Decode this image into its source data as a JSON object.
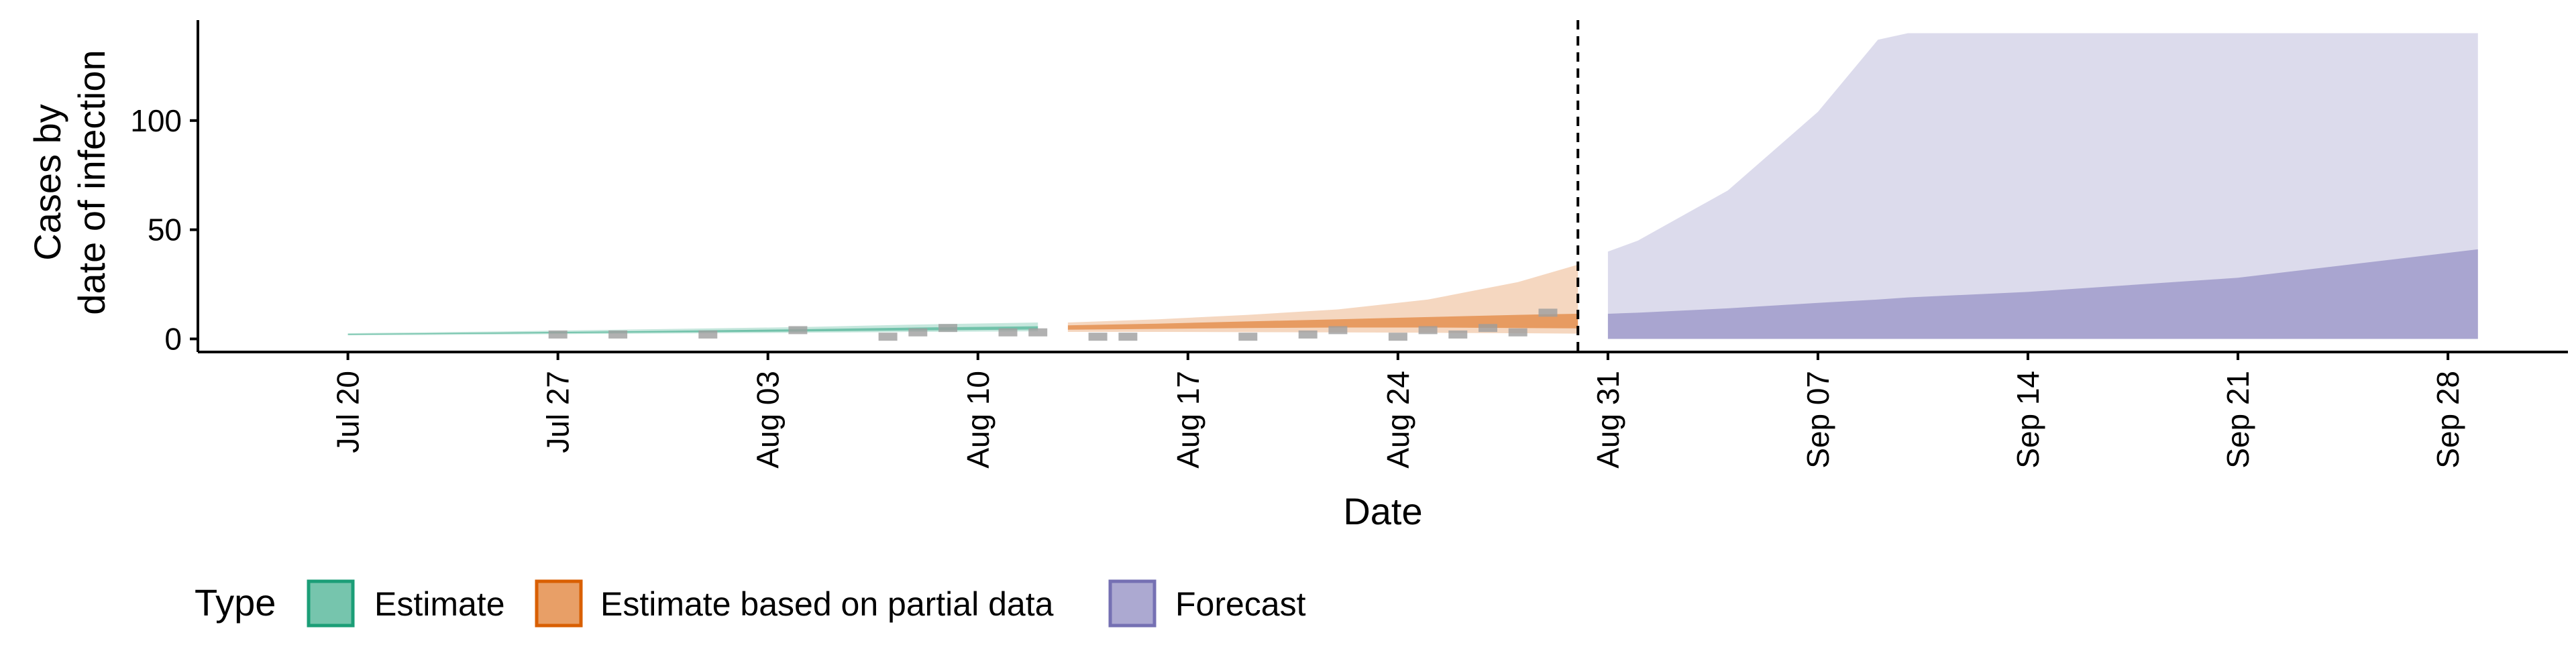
{
  "chart_data": {
    "type": "area",
    "title": "",
    "xlabel": "Date",
    "ylabel_lines": [
      "Cases by",
      "date of infection"
    ],
    "x_range": [
      "2020-07-15",
      "2020-10-02"
    ],
    "ylim": [
      -6,
      146
    ],
    "y_ticks": [
      0,
      50,
      100
    ],
    "y_tick_labels": [
      "0",
      "50",
      "100"
    ],
    "x_ticks": [
      "2020-07-20",
      "2020-07-27",
      "2020-08-03",
      "2020-08-10",
      "2020-08-17",
      "2020-08-24",
      "2020-08-31",
      "2020-09-07",
      "2020-09-14",
      "2020-09-21",
      "2020-09-28"
    ],
    "x_tick_labels": [
      "Jul 20",
      "Jul 27",
      "Aug 03",
      "Aug 10",
      "Aug 17",
      "Aug 24",
      "Aug 31",
      "Sep 07",
      "Sep 14",
      "Sep 21",
      "Sep 28"
    ],
    "vline_date": "2020-08-30",
    "grid": false,
    "legend_placement": "bottom",
    "legend": {
      "title": "Type",
      "items": [
        {
          "label": "Estimate",
          "fill": "#1b9e77",
          "stroke": "#1b9e77"
        },
        {
          "label": "Estimate based on partial data",
          "fill": "#d95f02",
          "stroke": "#d95f02"
        },
        {
          "label": "Forecast",
          "fill": "#7570b3",
          "stroke": "#7570b3"
        }
      ]
    },
    "series": [
      {
        "name": "Estimate",
        "color": "#1b9e77",
        "x": [
          "2020-07-20",
          "2020-07-25",
          "2020-07-30",
          "2020-08-04",
          "2020-08-08",
          "2020-08-12"
        ],
        "outer_low": [
          1.6,
          2.0,
          2.4,
          2.8,
          3.2,
          3.5
        ],
        "outer_high": [
          2.6,
          3.4,
          4.4,
          5.4,
          6.6,
          7.5
        ],
        "inner_low": [
          1.9,
          2.4,
          2.9,
          3.4,
          3.9,
          4.3
        ],
        "inner_high": [
          2.3,
          2.9,
          3.6,
          4.4,
          5.2,
          5.8
        ]
      },
      {
        "name": "Estimate based on partial data",
        "color": "#d95f02",
        "x": [
          "2020-08-13",
          "2020-08-16",
          "2020-08-19",
          "2020-08-22",
          "2020-08-25",
          "2020-08-28",
          "2020-08-30"
        ],
        "outer_low": [
          3.2,
          3.2,
          3.1,
          3.0,
          2.8,
          2.6,
          2.4
        ],
        "outer_high": [
          7.5,
          9.0,
          11.0,
          13.5,
          18.0,
          26.0,
          34.0
        ],
        "inner_low": [
          4.2,
          4.6,
          5.0,
          5.2,
          5.2,
          5.0,
          4.8
        ],
        "inner_high": [
          6.2,
          7.0,
          8.0,
          9.0,
          10.0,
          11.0,
          11.5
        ]
      },
      {
        "name": "Forecast",
        "color": "#7570b3",
        "x": [
          "2020-08-31",
          "2020-09-01",
          "2020-09-04",
          "2020-09-07",
          "2020-09-09",
          "2020-09-10",
          "2020-09-14",
          "2020-09-21",
          "2020-09-29"
        ],
        "outer_low": [
          0,
          0,
          0,
          0,
          0,
          0,
          0,
          0,
          0
        ],
        "outer_high": [
          40,
          45,
          68,
          104,
          137,
          140,
          140,
          140,
          140
        ],
        "inner_low": [
          0,
          0,
          0,
          0,
          0,
          0,
          0,
          0,
          0
        ],
        "inner_high": [
          11.5,
          12,
          14,
          16.5,
          18,
          19,
          21.5,
          28,
          41
        ]
      }
    ],
    "observed_cases": {
      "color": "#9e9e9e",
      "points": [
        {
          "x": "2020-07-27",
          "y": 2
        },
        {
          "x": "2020-07-29",
          "y": 2
        },
        {
          "x": "2020-08-01",
          "y": 2
        },
        {
          "x": "2020-08-04",
          "y": 4
        },
        {
          "x": "2020-08-07",
          "y": 1
        },
        {
          "x": "2020-08-08",
          "y": 3
        },
        {
          "x": "2020-08-09",
          "y": 5
        },
        {
          "x": "2020-08-11",
          "y": 3
        },
        {
          "x": "2020-08-12",
          "y": 3
        },
        {
          "x": "2020-08-14",
          "y": 1
        },
        {
          "x": "2020-08-15",
          "y": 1
        },
        {
          "x": "2020-08-19",
          "y": 1
        },
        {
          "x": "2020-08-21",
          "y": 2
        },
        {
          "x": "2020-08-22",
          "y": 4
        },
        {
          "x": "2020-08-24",
          "y": 1
        },
        {
          "x": "2020-08-25",
          "y": 4
        },
        {
          "x": "2020-08-26",
          "y": 2
        },
        {
          "x": "2020-08-27",
          "y": 5
        },
        {
          "x": "2020-08-28",
          "y": 3
        },
        {
          "x": "2020-08-29",
          "y": 12
        }
      ]
    }
  }
}
